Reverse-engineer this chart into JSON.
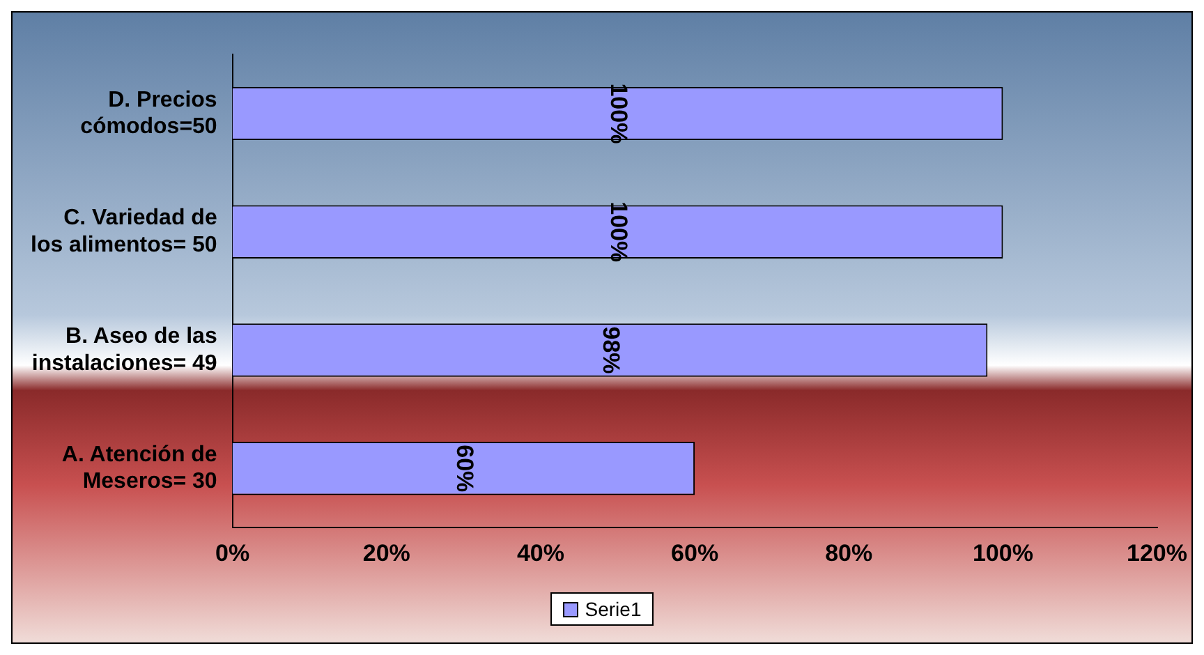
{
  "chart_data": {
    "type": "bar",
    "orientation": "horizontal",
    "categories": [
      "D. Precios cómodos=50",
      "C. Variedad de los alimentos= 50",
      "B. Aseo de las instalaciones= 49",
      "A. Atención de Meseros= 30"
    ],
    "series": [
      {
        "name": "Serie1",
        "color": "#9999ff",
        "values": [
          100,
          100,
          98,
          60
        ],
        "value_labels": [
          "100%",
          "100%",
          "98%",
          "60%"
        ]
      }
    ],
    "xlim": [
      0,
      120
    ],
    "xticks": [
      {
        "value": 0,
        "label": "0%"
      },
      {
        "value": 20,
        "label": "20%"
      },
      {
        "value": 40,
        "label": "40%"
      },
      {
        "value": 60,
        "label": "60%"
      },
      {
        "value": 80,
        "label": "80%"
      },
      {
        "value": 100,
        "label": "100%"
      },
      {
        "value": 120,
        "label": "120%"
      }
    ],
    "grid": false,
    "legend": "bottom"
  }
}
